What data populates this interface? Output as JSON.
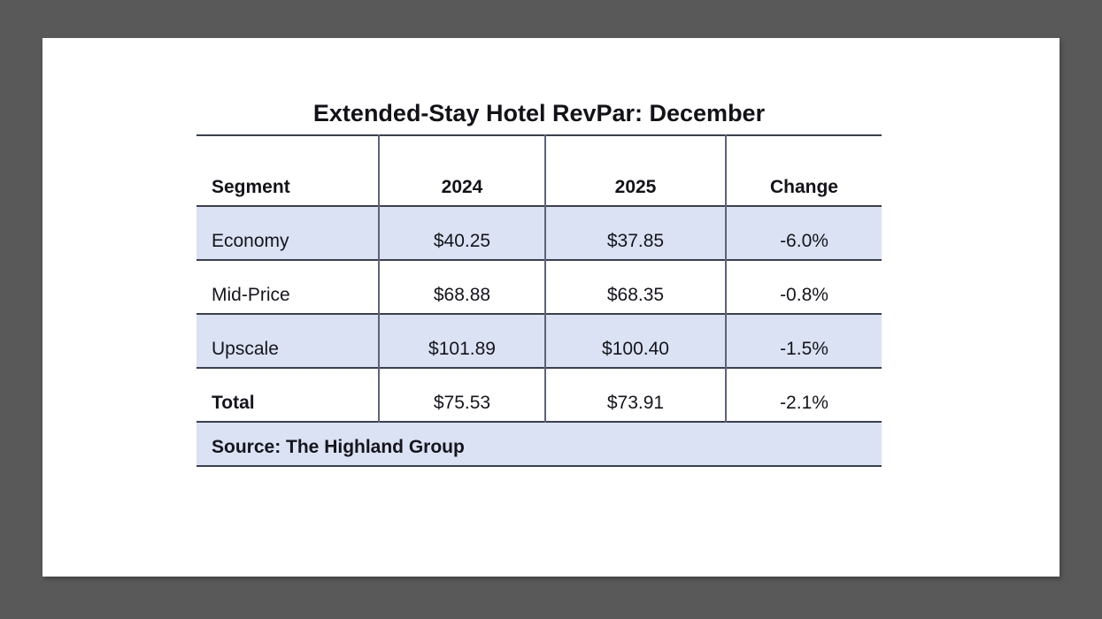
{
  "page": {
    "title": "Extended-Stay Hotel RevPar: December",
    "source": "Source: The Highland Group"
  },
  "table": {
    "columns": [
      "Segment",
      "2024",
      "2025",
      "Change"
    ],
    "rows": [
      {
        "segment": "Economy",
        "y2024": "$40.25",
        "y2025": "$37.85",
        "change": "-6.0%"
      },
      {
        "segment": "Mid-Price",
        "y2024": "$68.88",
        "y2025": "$68.35",
        "change": "-0.8%"
      },
      {
        "segment": "Upscale",
        "y2024": "$101.89",
        "y2025": "$100.40",
        "change": "-1.5%"
      },
      {
        "segment": "Total",
        "y2024": "$75.53",
        "y2025": "$73.91",
        "change": "-2.1%"
      }
    ]
  },
  "chart_data": {
    "type": "table",
    "title": "Extended-Stay Hotel RevPar: December",
    "columns": [
      "Segment",
      "2024",
      "2025",
      "Change"
    ],
    "rows": [
      [
        "Economy",
        40.25,
        37.85,
        -6.0
      ],
      [
        "Mid-Price",
        68.88,
        68.35,
        -0.8
      ],
      [
        "Upscale",
        101.89,
        100.4,
        -1.5
      ],
      [
        "Total",
        75.53,
        73.91,
        -2.1
      ]
    ],
    "value_units": "USD RevPar dollars for 2024/2025 columns, percent for Change column",
    "source": "The Highland Group"
  },
  "colors": {
    "frame_background": "#595959",
    "page_background": "#ffffff",
    "row_shade": "#dbe2f3",
    "rule_line": "#3b3f50",
    "column_divider": "#5d6378",
    "text": "#15151d"
  }
}
